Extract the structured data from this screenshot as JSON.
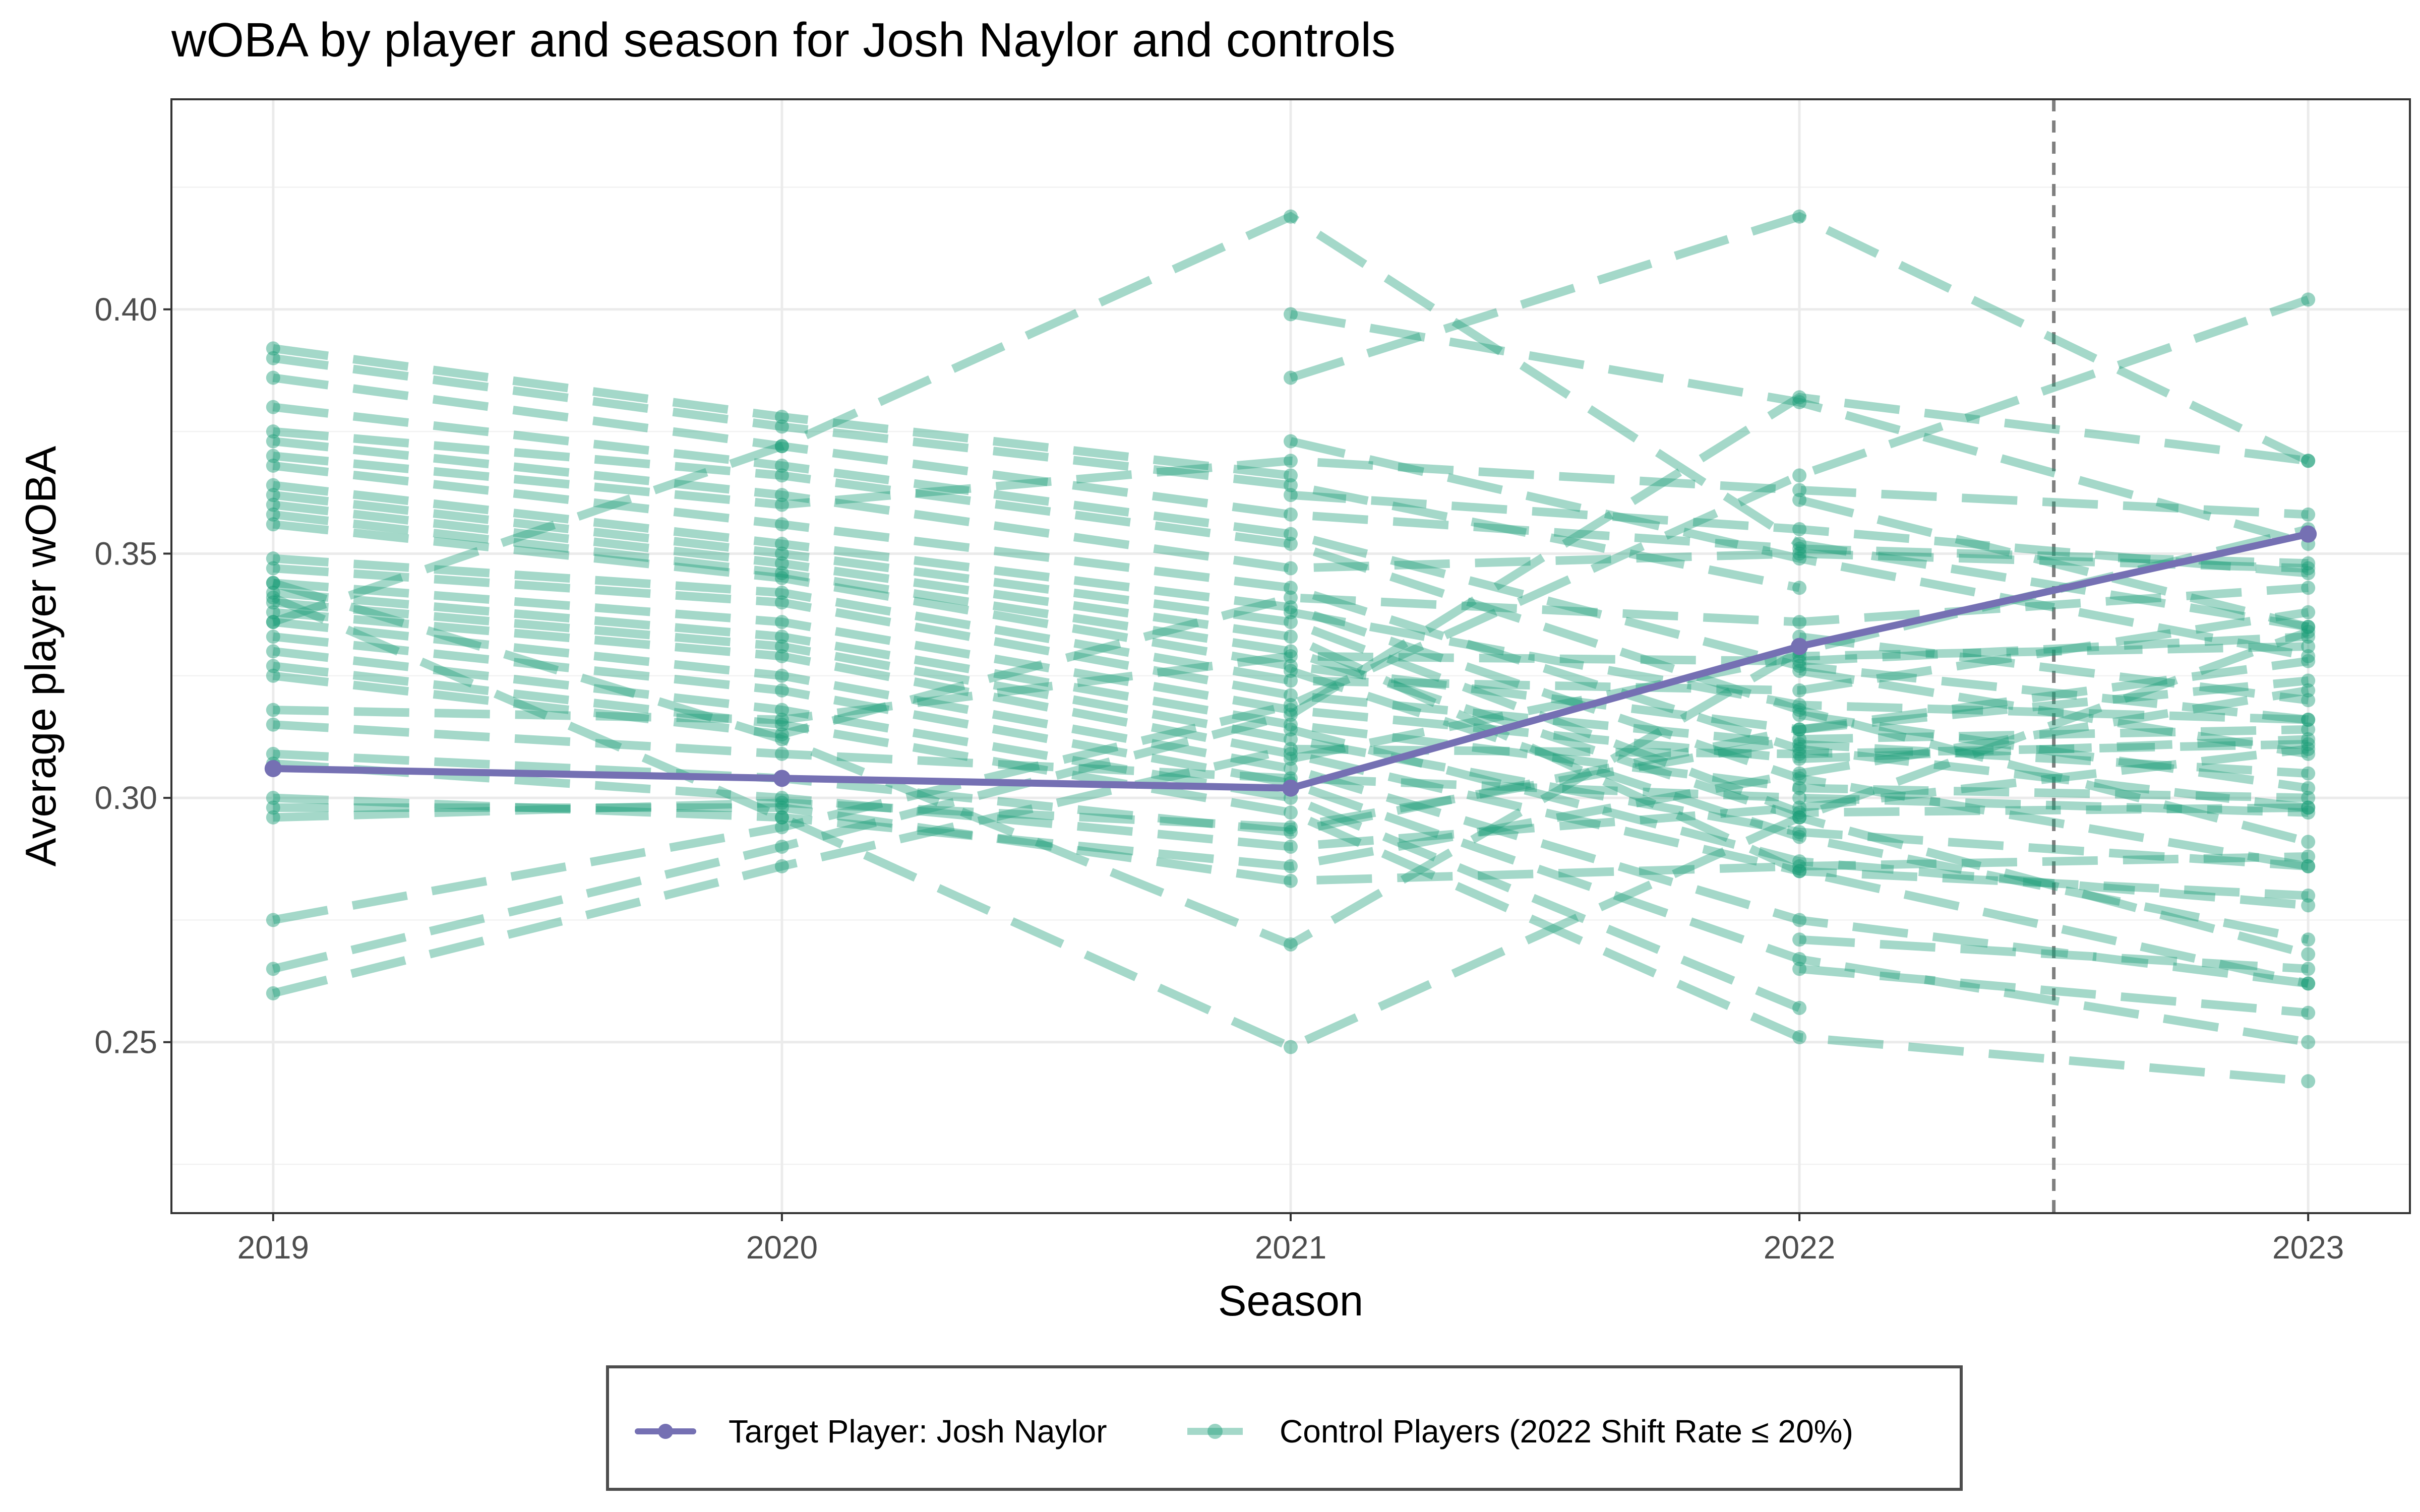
{
  "chart_data": {
    "type": "line",
    "title": "wOBA by player and season for Josh Naylor and controls",
    "xlabel": "Season",
    "ylabel": "Average player wOBA",
    "x": [
      2019,
      2020,
      2021,
      2022,
      2023
    ],
    "x_tick_labels": [
      "2019",
      "2020",
      "2021",
      "2022",
      "2023"
    ],
    "xlim": [
      2018.8,
      2023.2
    ],
    "ylim": [
      0.215,
      0.443
    ],
    "y_ticks": [
      0.25,
      0.3,
      0.35,
      0.4
    ],
    "y_tick_labels": [
      "0.25",
      "0.30",
      "0.35",
      "0.40"
    ],
    "grid": true,
    "legend_position": "bottom",
    "reference_line": {
      "x": 2022.5,
      "style": "dashed",
      "color": "#7f7f7f"
    },
    "colors": {
      "target": "#7570b3",
      "control": "#1b9e77",
      "panel_border": "#333333"
    },
    "series": [
      {
        "name": "Target Player: Josh Naylor",
        "role": "target",
        "values": [
          [
            2019,
            0.306
          ],
          [
            2020,
            0.304
          ],
          [
            2021,
            0.302
          ],
          [
            2022,
            0.331
          ],
          [
            2023,
            0.354
          ]
        ]
      }
    ],
    "control_series": [
      [
        [
          2019,
          0.392
        ],
        [
          2020,
          0.378
        ],
        [
          2021,
          0.366
        ]
      ],
      [
        [
          2019,
          0.39
        ],
        [
          2020,
          0.376
        ],
        [
          2021,
          0.364
        ],
        [
          2022,
          0.343
        ]
      ],
      [
        [
          2019,
          0.386
        ],
        [
          2020,
          0.372
        ],
        [
          2021,
          0.358
        ],
        [
          2022,
          0.351
        ],
        [
          2023,
          0.348
        ]
      ],
      [
        [
          2019,
          0.38
        ],
        [
          2020,
          0.368
        ],
        [
          2021,
          0.354
        ],
        [
          2022,
          0.327
        ],
        [
          2023,
          0.316
        ]
      ],
      [
        [
          2019,
          0.375
        ],
        [
          2020,
          0.366
        ],
        [
          2021,
          0.352
        ],
        [
          2022,
          0.318
        ],
        [
          2023,
          0.291
        ]
      ],
      [
        [
          2019,
          0.373
        ],
        [
          2020,
          0.362
        ],
        [
          2021,
          0.347
        ],
        [
          2022,
          0.35
        ],
        [
          2023,
          0.347
        ]
      ],
      [
        [
          2019,
          0.37
        ],
        [
          2020,
          0.36
        ],
        [
          2021,
          0.369
        ],
        [
          2022,
          0.363
        ],
        [
          2023,
          0.358
        ]
      ],
      [
        [
          2019,
          0.368
        ],
        [
          2020,
          0.356
        ],
        [
          2021,
          0.343
        ],
        [
          2022,
          0.31
        ],
        [
          2023,
          0.298
        ]
      ],
      [
        [
          2019,
          0.364
        ],
        [
          2020,
          0.352
        ],
        [
          2021,
          0.339
        ],
        [
          2022,
          0.304
        ],
        [
          2023,
          0.286
        ]
      ],
      [
        [
          2019,
          0.362
        ],
        [
          2020,
          0.35
        ],
        [
          2021,
          0.336
        ],
        [
          2022,
          0.297
        ],
        [
          2023,
          0.298
        ]
      ],
      [
        [
          2019,
          0.36
        ],
        [
          2020,
          0.348
        ],
        [
          2021,
          0.333
        ],
        [
          2022,
          0.285
        ],
        [
          2023,
          0.262
        ]
      ],
      [
        [
          2019,
          0.358
        ],
        [
          2020,
          0.346
        ],
        [
          2021,
          0.33
        ],
        [
          2022,
          0.296
        ],
        [
          2023,
          0.268
        ]
      ],
      [
        [
          2019,
          0.356
        ],
        [
          2020,
          0.345
        ],
        [
          2021,
          0.327
        ],
        [
          2022,
          0.314
        ],
        [
          2023,
          0.324
        ]
      ],
      [
        [
          2019,
          0.349
        ],
        [
          2020,
          0.342
        ],
        [
          2021,
          0.324
        ],
        [
          2022,
          0.322
        ],
        [
          2023,
          0.338
        ]
      ],
      [
        [
          2019,
          0.347
        ],
        [
          2020,
          0.34
        ],
        [
          2021,
          0.321
        ],
        [
          2022,
          0.311
        ],
        [
          2023,
          0.305
        ]
      ],
      [
        [
          2019,
          0.344
        ],
        [
          2020,
          0.336
        ],
        [
          2021,
          0.318
        ],
        [
          2022,
          0.308
        ],
        [
          2023,
          0.312
        ]
      ],
      [
        [
          2019,
          0.342
        ],
        [
          2020,
          0.333
        ],
        [
          2021,
          0.315
        ],
        [
          2022,
          0.302
        ],
        [
          2023,
          0.3
        ]
      ],
      [
        [
          2019,
          0.34
        ],
        [
          2020,
          0.331
        ],
        [
          2021,
          0.312
        ],
        [
          2022,
          0.293
        ],
        [
          2023,
          0.286
        ]
      ],
      [
        [
          2019,
          0.338
        ],
        [
          2020,
          0.329
        ],
        [
          2021,
          0.309
        ],
        [
          2022,
          0.285
        ],
        [
          2023,
          0.28
        ]
      ],
      [
        [
          2019,
          0.336
        ],
        [
          2020,
          0.325
        ],
        [
          2021,
          0.306
        ],
        [
          2022,
          0.275
        ],
        [
          2023,
          0.262
        ]
      ],
      [
        [
          2019,
          0.333
        ],
        [
          2020,
          0.322
        ],
        [
          2021,
          0.303
        ],
        [
          2022,
          0.267
        ],
        [
          2023,
          0.25
        ]
      ],
      [
        [
          2019,
          0.33
        ],
        [
          2020,
          0.318
        ],
        [
          2021,
          0.3
        ],
        [
          2022,
          0.257
        ]
      ],
      [
        [
          2019,
          0.327
        ],
        [
          2020,
          0.315
        ],
        [
          2021,
          0.297
        ],
        [
          2022,
          0.251
        ],
        [
          2023,
          0.242
        ]
      ],
      [
        [
          2019,
          0.325
        ],
        [
          2020,
          0.313
        ],
        [
          2021,
          0.341
        ],
        [
          2022,
          0.336
        ],
        [
          2023,
          0.343
        ]
      ],
      [
        [
          2019,
          0.318
        ],
        [
          2020,
          0.316
        ],
        [
          2021,
          0.329
        ],
        [
          2022,
          0.328
        ],
        [
          2023,
          0.333
        ]
      ],
      [
        [
          2019,
          0.315
        ],
        [
          2020,
          0.309
        ],
        [
          2021,
          0.304
        ],
        [
          2022,
          0.3
        ],
        [
          2023,
          0.297
        ]
      ],
      [
        [
          2019,
          0.309
        ],
        [
          2020,
          0.304
        ],
        [
          2021,
          0.293
        ],
        [
          2022,
          0.314
        ],
        [
          2023,
          0.328
        ]
      ],
      [
        [
          2019,
          0.307
        ],
        [
          2020,
          0.3
        ],
        [
          2021,
          0.29
        ],
        [
          2022,
          0.298
        ],
        [
          2023,
          0.31
        ]
      ],
      [
        [
          2019,
          0.3
        ],
        [
          2020,
          0.296
        ],
        [
          2021,
          0.286
        ],
        [
          2022,
          0.305
        ],
        [
          2023,
          0.322
        ]
      ],
      [
        [
          2019,
          0.298
        ],
        [
          2020,
          0.298
        ],
        [
          2021,
          0.283
        ],
        [
          2022,
          0.286
        ],
        [
          2023,
          0.288
        ]
      ],
      [
        [
          2019,
          0.296
        ],
        [
          2020,
          0.299
        ],
        [
          2021,
          0.294
        ],
        [
          2022,
          0.312
        ],
        [
          2023,
          0.314
        ]
      ],
      [
        [
          2019,
          0.336
        ],
        [
          2020,
          0.372
        ],
        [
          2021,
          0.419
        ],
        [
          2022,
          0.352
        ],
        [
          2023,
          0.335
        ]
      ],
      [
        [
          2019,
          0.344
        ],
        [
          2020,
          0.312
        ],
        [
          2021,
          0.27
        ],
        [
          2022,
          0.33
        ],
        [
          2023,
          0.355
        ]
      ],
      [
        [
          2019,
          0.275
        ],
        [
          2020,
          0.294
        ],
        [
          2021,
          0.319
        ],
        [
          2022,
          0.366
        ],
        [
          2023,
          0.402
        ]
      ],
      [
        [
          2019,
          0.265
        ],
        [
          2020,
          0.29
        ],
        [
          2021,
          0.317
        ],
        [
          2022,
          0.382
        ],
        [
          2023,
          0.369
        ]
      ],
      [
        [
          2019,
          0.26
        ],
        [
          2020,
          0.286
        ],
        [
          2021,
          0.31
        ],
        [
          2022,
          0.309
        ],
        [
          2023,
          0.311
        ]
      ],
      [
        [
          2019,
          0.341
        ],
        [
          2020,
          0.296
        ],
        [
          2021,
          0.249
        ],
        [
          2022,
          0.296
        ],
        [
          2023,
          0.334
        ]
      ],
      [
        [
          2021,
          0.399
        ],
        [
          2022,
          0.381
        ],
        [
          2023,
          0.352
        ]
      ],
      [
        [
          2021,
          0.386
        ],
        [
          2022,
          0.419
        ],
        [
          2023,
          0.369
        ]
      ],
      [
        [
          2021,
          0.373
        ],
        [
          2022,
          0.349
        ],
        [
          2023,
          0.329
        ]
      ],
      [
        [
          2021,
          0.362
        ],
        [
          2022,
          0.355
        ],
        [
          2023,
          0.346
        ]
      ],
      [
        [
          2021,
          0.338
        ],
        [
          2022,
          0.319
        ],
        [
          2023,
          0.316
        ]
      ],
      [
        [
          2021,
          0.326
        ],
        [
          2022,
          0.292
        ],
        [
          2023,
          0.271
        ]
      ],
      [
        [
          2021,
          0.314
        ],
        [
          2022,
          0.287
        ],
        [
          2023,
          0.278
        ]
      ],
      [
        [
          2021,
          0.308
        ],
        [
          2022,
          0.329
        ],
        [
          2023,
          0.331
        ]
      ],
      [
        [
          2022,
          0.361
        ],
        [
          2023,
          0.335
        ]
      ],
      [
        [
          2022,
          0.333
        ],
        [
          2023,
          0.32
        ]
      ],
      [
        [
          2022,
          0.326
        ],
        [
          2023,
          0.309
        ]
      ],
      [
        [
          2022,
          0.317
        ],
        [
          2023,
          0.302
        ]
      ],
      [
        [
          2022,
          0.271
        ],
        [
          2023,
          0.265
        ]
      ],
      [
        [
          2022,
          0.265
        ],
        [
          2023,
          0.256
        ]
      ]
    ],
    "legend": [
      {
        "label": "Target Player: Josh Naylor",
        "role": "target"
      },
      {
        "label": "Control Players (2022 Shift Rate ≤ 20%)",
        "role": "control"
      }
    ]
  }
}
